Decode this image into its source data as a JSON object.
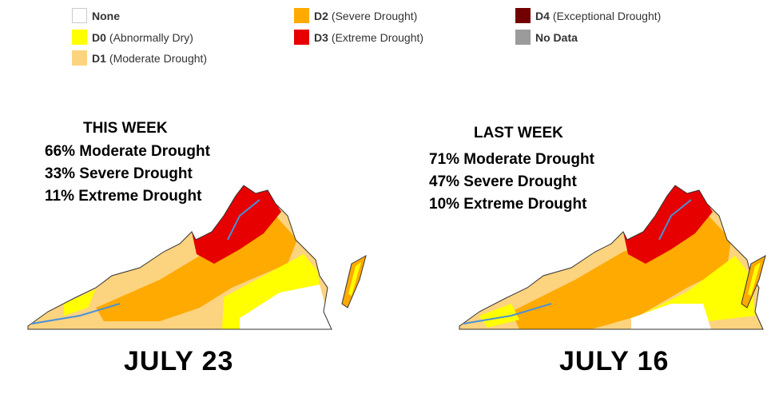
{
  "legend": [
    {
      "code": "",
      "label": "None",
      "color": "#ffffff"
    },
    {
      "code": "D0",
      "label": "(Abnormally Dry)",
      "color": "#ffff00"
    },
    {
      "code": "D1",
      "label": "(Moderate Drought)",
      "color": "#fcd37f"
    },
    {
      "code": "D2",
      "label": "(Severe Drought)",
      "color": "#ffaa00"
    },
    {
      "code": "D3",
      "label": "(Extreme Drought)",
      "color": "#e60000"
    },
    {
      "code": "D4",
      "label": "(Exceptional Drought)",
      "color": "#730000"
    },
    {
      "code": "",
      "label": "No Data",
      "color": "#9b9b9b"
    }
  ],
  "maps": [
    {
      "heading": "THIS WEEK",
      "stats": [
        "66% Moderate Drought",
        "33% Severe Drought",
        "11% Extreme Drought"
      ],
      "date": "JULY 23"
    },
    {
      "heading": "LAST WEEK",
      "stats": [
        "71% Moderate Drought",
        "47% Severe Drought",
        "10% Extreme Drought"
      ],
      "date": "JULY 16"
    }
  ]
}
